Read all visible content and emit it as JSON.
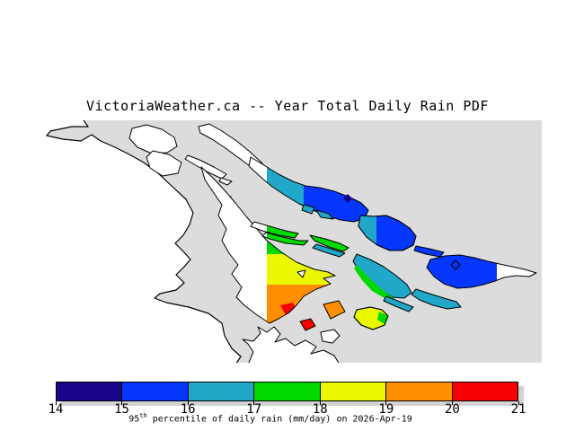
{
  "title": "VictoriaWeather.ca -- Year Total Daily Rain PDF",
  "colorbar": {
    "tick_labels": [
      "14",
      "15",
      "16",
      "17",
      "18",
      "19",
      "20",
      "21"
    ],
    "segment_colors": [
      "#170487",
      "#0436fc",
      "#21a7c8",
      "#00d900",
      "#eaf800",
      "#ff8e00",
      "#f60202"
    ],
    "caption_value": "95",
    "caption_sup": "th",
    "caption_rest": " percentile of daily rain (mm/day) on 2026-Apr-19"
  },
  "colors": {
    "sea": "#dcdcdc",
    "land": "#ffffff",
    "coastline": "#000000",
    "shadow": "#d2d2d2",
    "navy": "#170487",
    "blue": "#0436fc",
    "teal": "#21a7c8",
    "green": "#00d900",
    "yellow": "#eaf800",
    "orange": "#ff8e00",
    "red": "#f60202"
  },
  "chart_data": {
    "type": "heatmap",
    "title": "VictoriaWeather.ca -- Year Total Daily Rain PDF",
    "colorbar": {
      "ticks": [
        14,
        15,
        16,
        17,
        18,
        19,
        20,
        21
      ],
      "unit": "mm/day",
      "label": "95th percentile of daily rain (mm/day) on 2026-Apr-19",
      "orientation": "horizontal"
    },
    "regions": [
      {
        "name": "long-northeast-island",
        "colors": [
          "teal",
          "blue"
        ],
        "value_range": [
          15,
          17
        ]
      },
      {
        "name": "mid-northeast-island",
        "colors": [
          "teal",
          "blue"
        ],
        "value_range": [
          15,
          17
        ]
      },
      {
        "name": "east-island-with-white-tip",
        "colors": [
          "blue"
        ],
        "value_range": [
          15,
          16
        ]
      },
      {
        "name": "central-teal-island",
        "colors": [
          "green",
          "teal"
        ],
        "value_range": [
          16,
          18
        ]
      },
      {
        "name": "southeast-teal-islets",
        "colors": [
          "teal"
        ],
        "value_range": [
          16,
          17
        ]
      },
      {
        "name": "large-central-island",
        "colors": [
          "green",
          "yellow",
          "orange",
          "red"
        ],
        "value_range": [
          17,
          21
        ]
      },
      {
        "name": "small-orange-islet",
        "colors": [
          "orange"
        ],
        "value_range": [
          19,
          20
        ]
      },
      {
        "name": "small-red-islet",
        "colors": [
          "red"
        ],
        "value_range": [
          20,
          21
        ]
      },
      {
        "name": "small-yellow-green-islet",
        "colors": [
          "yellow",
          "green"
        ],
        "value_range": [
          17,
          19
        ]
      },
      {
        "name": "thin-green-islets",
        "colors": [
          "green"
        ],
        "value_range": [
          17,
          18
        ]
      }
    ],
    "station_markers": 2
  }
}
